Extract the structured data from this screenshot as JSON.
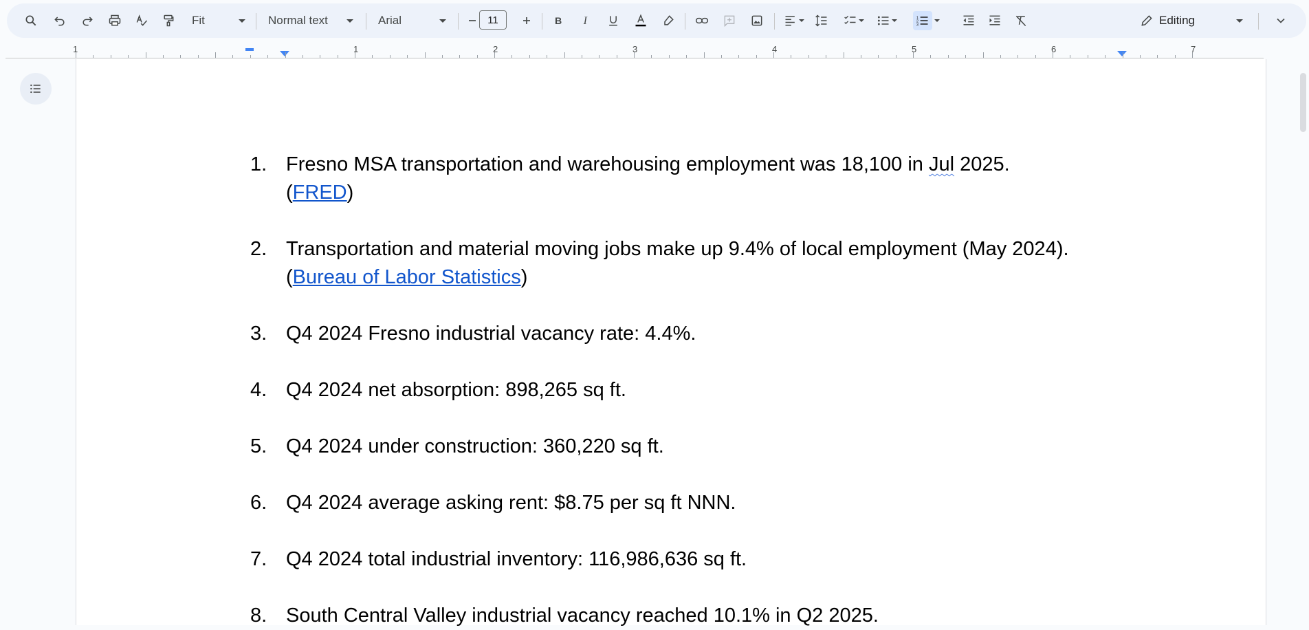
{
  "toolbar": {
    "zoom": "Fit",
    "style": "Normal text",
    "font": "Arial",
    "font_size": "11",
    "mode": "Editing",
    "icons": [
      "search-icon",
      "undo-icon",
      "redo-icon",
      "print-icon",
      "spellcheck-icon",
      "paint-format-icon",
      "decrease-font-icon",
      "increase-font-icon",
      "bold-icon",
      "italic-icon",
      "underline-icon",
      "text-color-icon",
      "highlight-icon",
      "link-icon",
      "add-comment-icon",
      "insert-image-icon",
      "align-icon",
      "line-spacing-icon",
      "checklist-icon",
      "bulleted-list-icon",
      "numbered-list-icon",
      "decrease-indent-icon",
      "increase-indent-icon",
      "clear-formatting-icon",
      "pencil-icon",
      "collapse-icon"
    ]
  },
  "ruler": {
    "labels": [
      "1",
      "1",
      "2",
      "3",
      "4",
      "5",
      "6",
      "7"
    ]
  },
  "document": {
    "items": [
      {
        "num": "1.",
        "line1_pre": "Fresno MSA transportation and warehousing employment was 18,100 in ",
        "line1_sq": "Jul",
        "line1_post": " 2025.",
        "open": "(",
        "link": "FRED",
        "close": ")"
      },
      {
        "num": "2.",
        "line1": "Transportation and material moving jobs make up 9.4% of local employment (May 2024).",
        "open": "(",
        "link": "Bureau of Labor Statistics",
        "close": ")"
      },
      {
        "num": "3.",
        "line1": "Q4 2024 Fresno industrial vacancy rate: 4.4%."
      },
      {
        "num": "4.",
        "line1": "Q4 2024 net absorption: 898,265 sq ft."
      },
      {
        "num": "5.",
        "line1": "Q4 2024 under construction: 360,220 sq ft."
      },
      {
        "num": "6.",
        "line1": "Q4 2024 average asking rent: $8.75 per sq ft NNN."
      },
      {
        "num": "7.",
        "line1": "Q4 2024 total industrial inventory: 116,986,636 sq ft."
      },
      {
        "num": "8.",
        "line1": "South Central Valley industrial vacancy reached 10.1% in Q2 2025."
      }
    ]
  },
  "colors": {
    "link": "#1155cc",
    "toolbar_bg": "#edf2fa",
    "page_bg": "#ffffff",
    "canvas_bg": "#f9fbfd"
  }
}
